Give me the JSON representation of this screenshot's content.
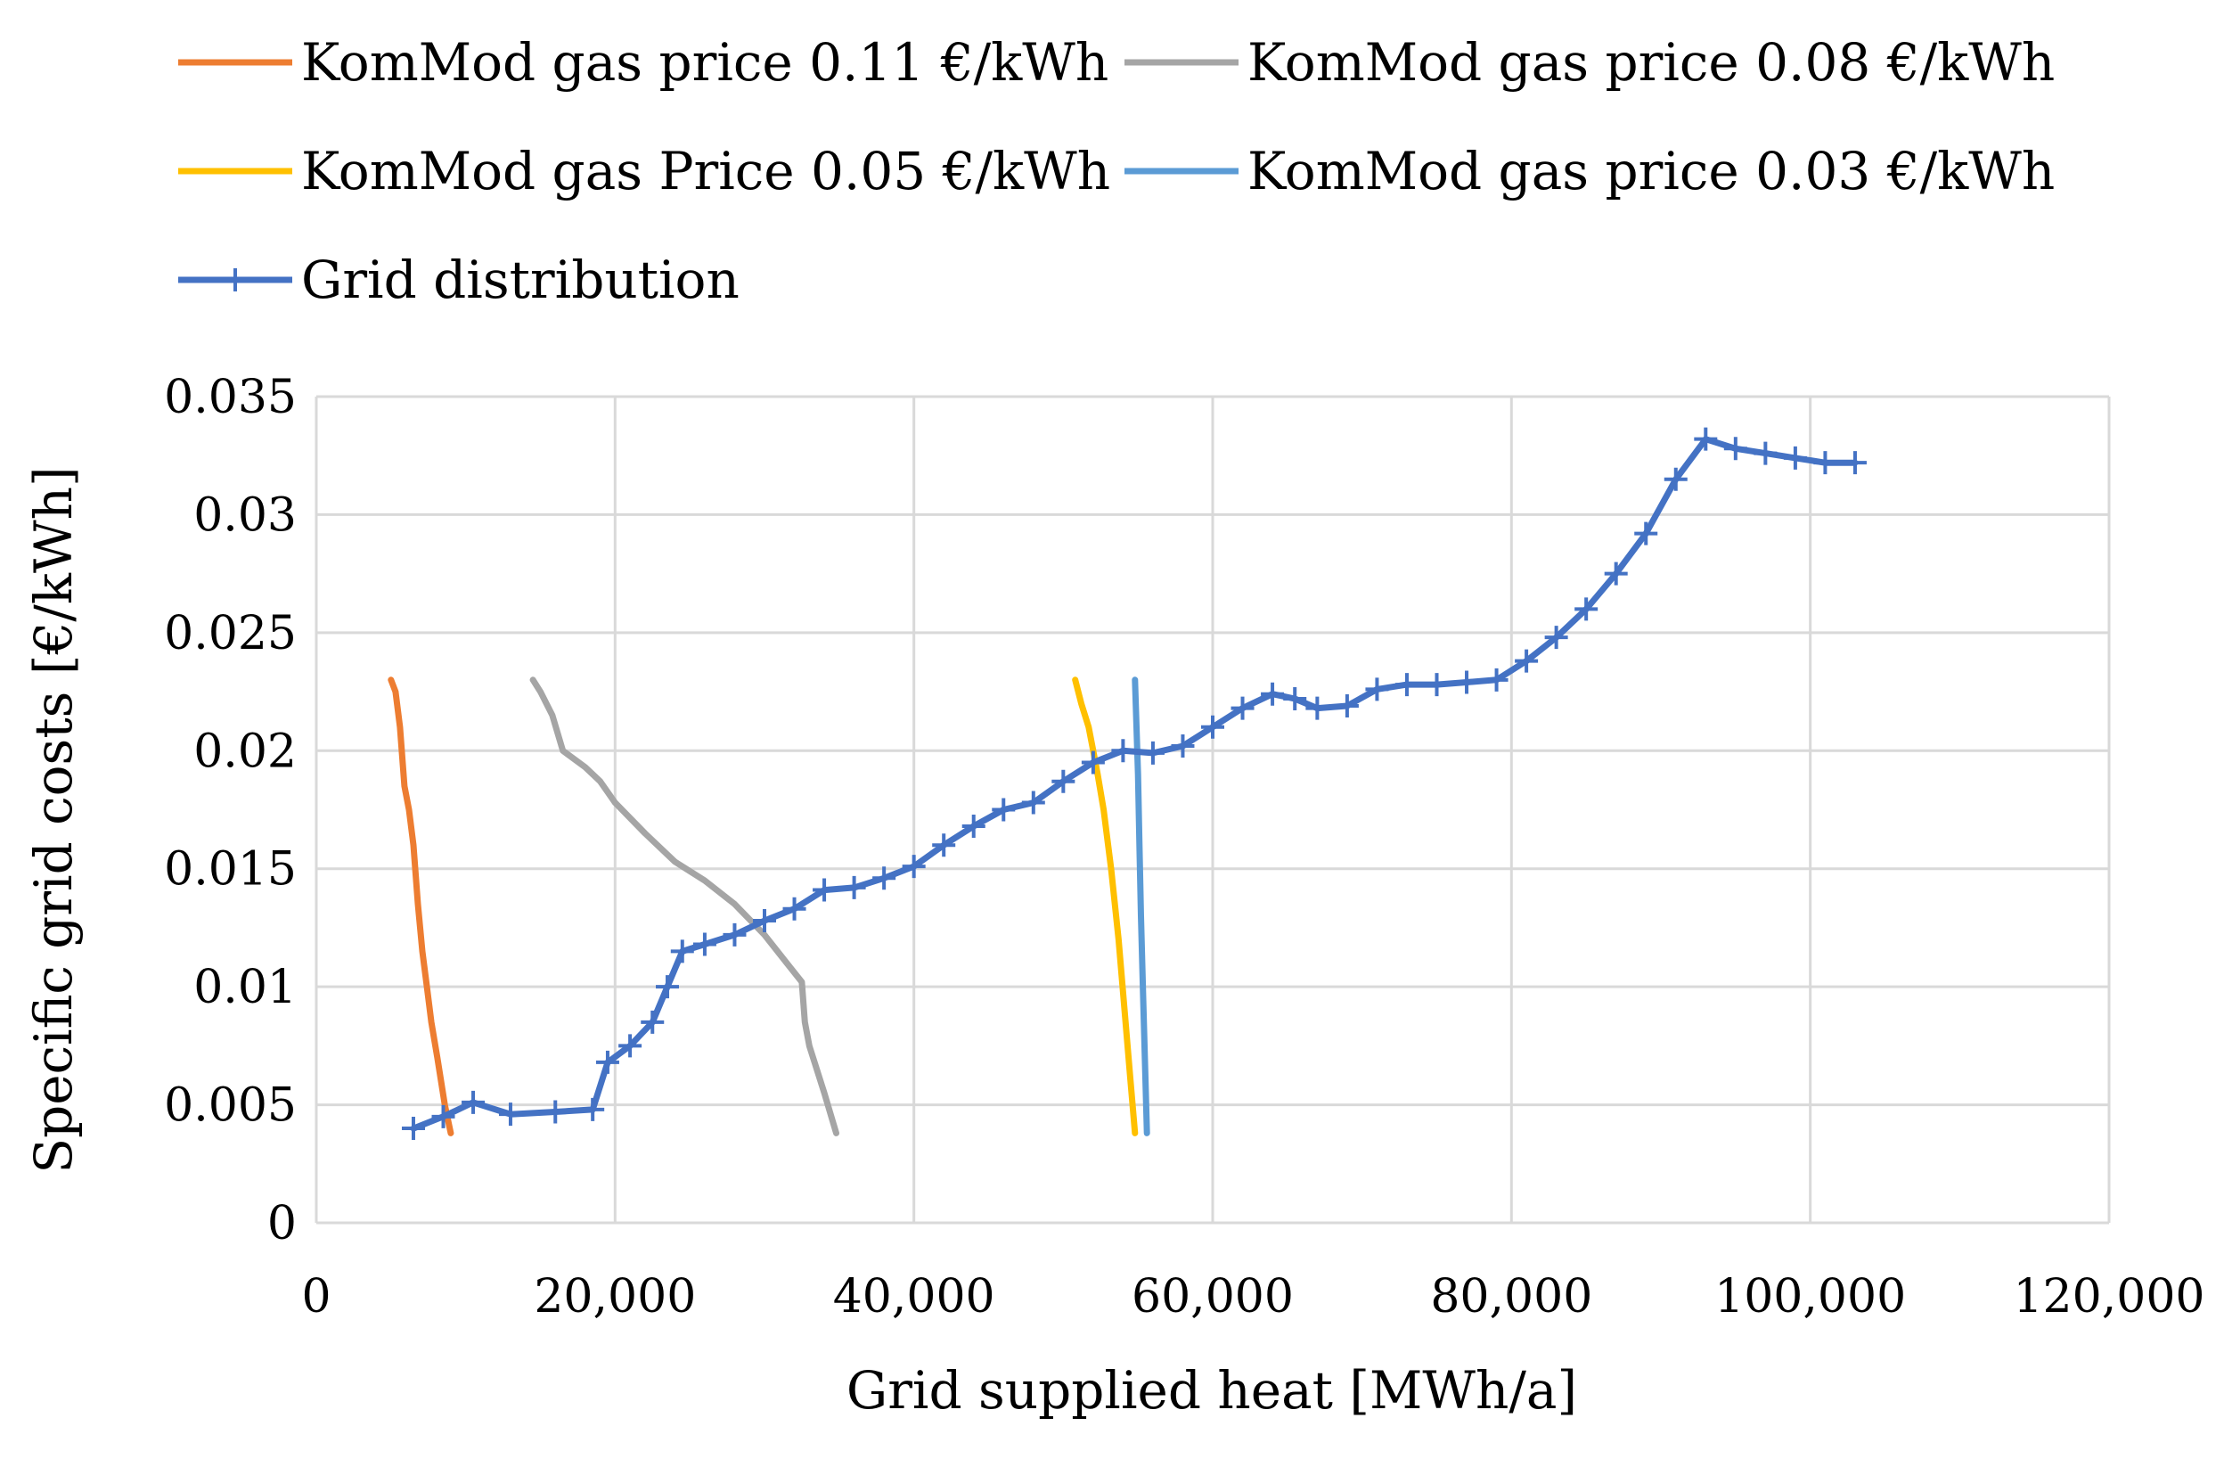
{
  "chart_data": {
    "type": "line",
    "xlabel": "Grid supplied heat [MWh/a]",
    "ylabel": "Specific grid costs [€/kWh]",
    "xlim": [
      0,
      120000
    ],
    "ylim": [
      0,
      0.035
    ],
    "x_ticks": [
      0,
      20000,
      40000,
      60000,
      80000,
      100000,
      120000
    ],
    "x_tick_labels": [
      "0",
      "20,000",
      "40,000",
      "60,000",
      "80,000",
      "100,000",
      "120,000"
    ],
    "y_ticks": [
      0,
      0.005,
      0.01,
      0.015,
      0.02,
      0.025,
      0.03,
      0.035
    ],
    "y_tick_labels": [
      "0",
      "0.005",
      "0.01",
      "0.015",
      "0.02",
      "0.025",
      "0.03",
      "0.035"
    ],
    "grid": true,
    "legend_position": "top",
    "series": [
      {
        "name": "KomMod gas price 0.11 €/kWh",
        "color": "#ed7d31",
        "marker": "none",
        "x": [
          5000,
          5300,
          5600,
          5900,
          6200,
          6500,
          6800,
          7100,
          7400,
          7700,
          8100,
          8600,
          9000
        ],
        "y": [
          0.023,
          0.0225,
          0.021,
          0.0185,
          0.0175,
          0.016,
          0.0135,
          0.0115,
          0.01,
          0.0085,
          0.007,
          0.005,
          0.0038
        ]
      },
      {
        "name": "KomMod gas price 0.08 €/kWh",
        "color": "#a5a5a5",
        "marker": "none",
        "x": [
          14500,
          15000,
          15800,
          16500,
          18000,
          19000,
          20000,
          22000,
          24000,
          26000,
          28000,
          30000,
          31500,
          32500,
          32700,
          33000,
          34000,
          34800
        ],
        "y": [
          0.023,
          0.0225,
          0.0215,
          0.02,
          0.0193,
          0.0187,
          0.0178,
          0.0165,
          0.0153,
          0.0145,
          0.0135,
          0.0122,
          0.011,
          0.0102,
          0.0085,
          0.0075,
          0.0055,
          0.0038
        ]
      },
      {
        "name": "KomMod gas Price 0.05 €/kWh",
        "color": "#ffc000",
        "marker": "none",
        "x": [
          50800,
          51200,
          51700,
          52000,
          52300,
          52700,
          53200,
          53700,
          54100,
          54500,
          54800
        ],
        "y": [
          0.023,
          0.022,
          0.021,
          0.02,
          0.019,
          0.0175,
          0.015,
          0.012,
          0.009,
          0.006,
          0.0038
        ]
      },
      {
        "name": "KomMod gas price 0.03 €/kWh",
        "color": "#5b9bd5",
        "marker": "none",
        "x": [
          54800,
          54900,
          55000,
          55100,
          55200,
          55350,
          55500,
          55600
        ],
        "y": [
          0.023,
          0.021,
          0.019,
          0.016,
          0.013,
          0.0095,
          0.006,
          0.0038
        ]
      },
      {
        "name": "Grid distribution",
        "color": "#4472c4",
        "marker": "plus",
        "x": [
          6500,
          8500,
          10500,
          13000,
          16000,
          18500,
          19500,
          21000,
          22500,
          23500,
          24500,
          26000,
          28000,
          30000,
          32000,
          34000,
          36000,
          38000,
          40000,
          42000,
          44000,
          46000,
          48000,
          50000,
          52000,
          54000,
          56000,
          58000,
          60000,
          62000,
          64000,
          65500,
          67000,
          69000,
          71000,
          73000,
          75000,
          77000,
          79000,
          81000,
          83000,
          85000,
          87000,
          89000,
          91000,
          93000,
          95000,
          97000,
          99000,
          101000,
          103000
        ],
        "y": [
          0.004,
          0.0045,
          0.0051,
          0.0046,
          0.0047,
          0.0048,
          0.0068,
          0.0075,
          0.0085,
          0.01,
          0.0115,
          0.0118,
          0.0122,
          0.0128,
          0.0133,
          0.0141,
          0.0142,
          0.0146,
          0.0151,
          0.016,
          0.0168,
          0.0175,
          0.0178,
          0.0187,
          0.0195,
          0.02,
          0.0199,
          0.0202,
          0.021,
          0.0218,
          0.0224,
          0.0222,
          0.0218,
          0.0219,
          0.0226,
          0.0228,
          0.0228,
          0.0229,
          0.023,
          0.0238,
          0.0248,
          0.026,
          0.0275,
          0.0292,
          0.0315,
          0.0332,
          0.0328,
          0.0326,
          0.0324,
          0.0322,
          0.0322
        ]
      }
    ]
  }
}
